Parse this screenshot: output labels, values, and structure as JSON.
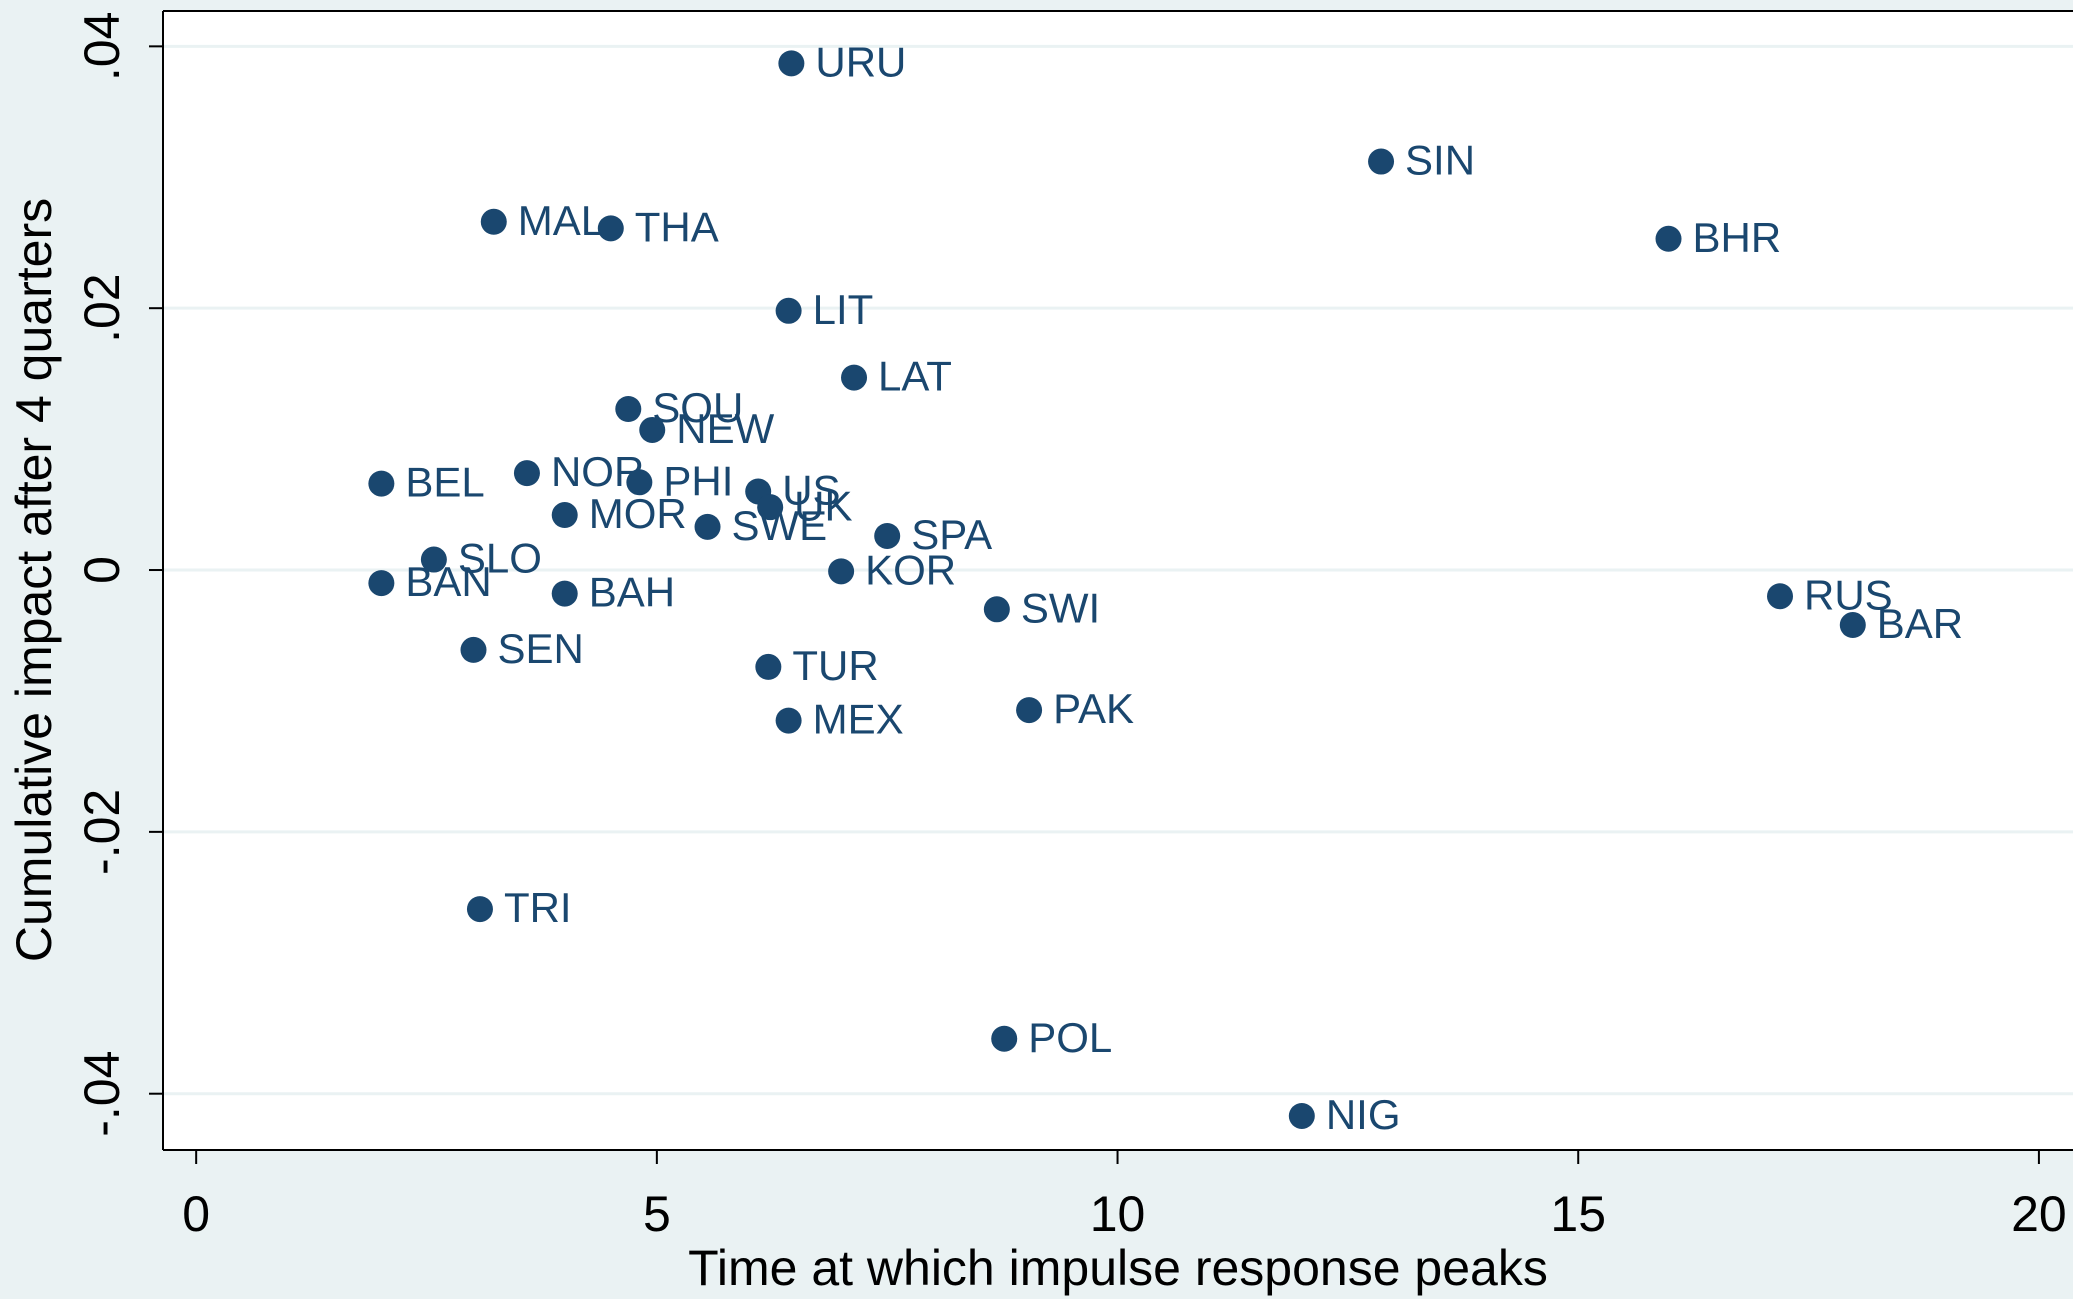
{
  "chart_data": {
    "type": "scatter",
    "x_label": "Time at which impulse response peaks",
    "y_label": "Cumulative impact after 4 quarters",
    "color": "#1a476f",
    "grid": true,
    "labels": [
      "URU",
      "SIN",
      "MAL",
      "THA",
      "BHR",
      "LIT",
      "LAT",
      "SOU",
      "NEW",
      "BEL",
      "NOR",
      "PHI",
      "US",
      "UK",
      "MOR",
      "SWE",
      "SPA",
      "SLO",
      "KOR",
      "BAN",
      "BAH",
      "RUS",
      "SWI",
      "BAR",
      "SEN",
      "TUR",
      "PAK",
      "MEX",
      "TRI",
      "POL",
      "NIG"
    ],
    "x": [
      6.46,
      12.86,
      3.23,
      4.5,
      15.98,
      6.43,
      7.14,
      4.69,
      4.95,
      2.01,
      3.59,
      4.81,
      6.1,
      6.23,
      4.0,
      5.55,
      7.5,
      2.58,
      7.0,
      2.01,
      4.0,
      17.19,
      8.69,
      17.98,
      3.01,
      6.21,
      9.04,
      6.43,
      3.08,
      8.77,
      12.0
    ],
    "values": [
      0.0387,
      0.0312,
      0.0266,
      0.0261,
      0.0253,
      0.0198,
      0.0147,
      0.0123,
      0.0107,
      0.0066,
      0.0074,
      0.0067,
      0.006,
      0.0048,
      0.0042,
      0.0033,
      0.0026,
      0.0008,
      -0.0001,
      -0.001,
      -0.0018,
      -0.002,
      -0.003,
      -0.0042,
      -0.0061,
      -0.0074,
      -0.0107,
      -0.0115,
      -0.0259,
      -0.0358,
      -0.0417
    ],
    "xlim": [
      -0.36,
      20.37
    ],
    "ylim": [
      -0.0443,
      0.0427
    ],
    "xticks": [
      0,
      5,
      10,
      15,
      20
    ],
    "yticks": [
      {
        "value": 0.04,
        "label": ".04"
      },
      {
        "value": 0.02,
        "label": ".02"
      },
      0,
      {
        "value": -0.02,
        "label": "-.02"
      },
      {
        "value": -0.04,
        "label": "-.04"
      }
    ]
  }
}
